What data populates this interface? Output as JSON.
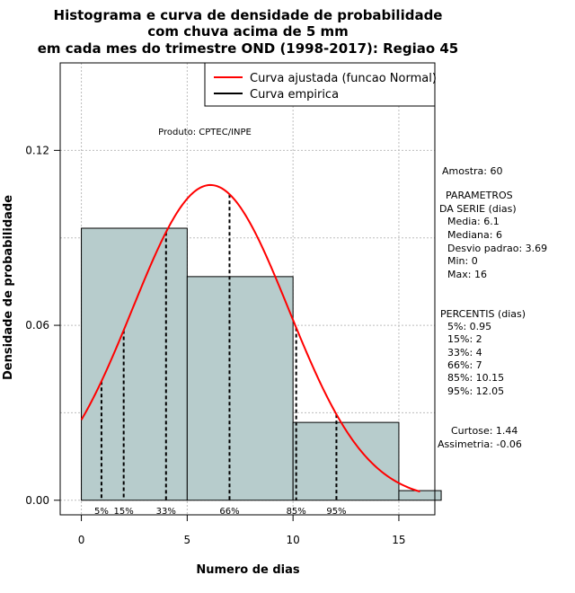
{
  "chart_data": {
    "type": "bar",
    "title_lines": [
      "Histograma e curva de densidade de probabilidade",
      "com chuva acima de 5 mm",
      "em cada mes do trimestre OND (1998-2017): Regiao 45"
    ],
    "xlabel": "Numero de dias",
    "ylabel": "Densidade de probabilidade",
    "xlim": [
      -1,
      16.7
    ],
    "ylim": [
      -0.005,
      0.15
    ],
    "x_ticks": [
      0,
      5,
      10,
      15
    ],
    "y_ticks": [
      0.0,
      0.06,
      0.12
    ],
    "y_tick_labels": [
      "0.00",
      "0.06",
      "0.12"
    ],
    "bins": [
      {
        "start": 0,
        "end": 5,
        "density": 0.0933
      },
      {
        "start": 5,
        "end": 10,
        "density": 0.0767
      },
      {
        "start": 10,
        "end": 15,
        "density": 0.0267
      },
      {
        "start": 15,
        "end": 17,
        "density": 0.0033
      }
    ],
    "bar_color": "#b7cccc",
    "normal_curve": {
      "mean": 6.1,
      "sd": 3.69,
      "range": [
        0,
        16
      ],
      "color": "#ff0000"
    },
    "percentile_lines": [
      {
        "label": "5%",
        "x": 0.95
      },
      {
        "label": "15%",
        "x": 2
      },
      {
        "label": "33%",
        "x": 4
      },
      {
        "label": "66%",
        "x": 7
      },
      {
        "label": "85%",
        "x": 10.15
      },
      {
        "label": "95%",
        "x": 12.05
      }
    ],
    "legend": [
      {
        "label": "Curva ajustada (funcao Normal)",
        "color": "#ff0000"
      },
      {
        "label": "Curva empirica",
        "color": "#000000"
      }
    ],
    "credit": "Produto: CPTEC/INPE",
    "stats": {
      "amostra": "Amostra: 60",
      "parametros_title": [
        "PARAMETROS",
        "DA SERIE (dias)"
      ],
      "parametros": [
        "Media: 6.1",
        "Mediana: 6",
        "Desvio padrao: 3.69",
        "Min: 0",
        "Max: 16"
      ],
      "percentis_title": "PERCENTIS (dias)",
      "percentis": [
        "5%: 0.95",
        "15%: 2",
        "33%: 4",
        "66%: 7",
        "85%: 10.15",
        "95%: 12.05"
      ],
      "curtose": "Curtose: 1.44",
      "assimetria": "Assimetria: -0.06"
    }
  }
}
